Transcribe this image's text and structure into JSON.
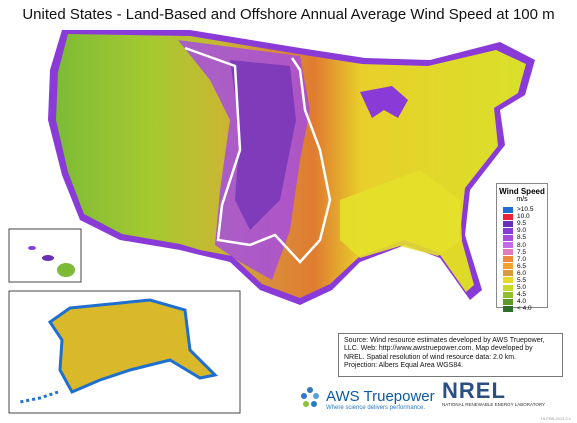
{
  "title": "United States - Land-Based and Offshore Annual Average Wind Speed at 100 m",
  "legend": {
    "title": "Wind Speed",
    "unit": "m/s",
    "items": [
      {
        "label": ">10.5",
        "color": "#1f6fd1"
      },
      {
        "label": "10.0",
        "color": "#e8233a"
      },
      {
        "label": "9.5",
        "color": "#6b2fb5"
      },
      {
        "label": "9.0",
        "color": "#8a3ad6"
      },
      {
        "label": "8.5",
        "color": "#a64de0"
      },
      {
        "label": "8.0",
        "color": "#c46bea"
      },
      {
        "label": "7.5",
        "color": "#e07ab8"
      },
      {
        "label": "7.0",
        "color": "#ef8a3a"
      },
      {
        "label": "6.5",
        "color": "#f2a12e"
      },
      {
        "label": "6.0",
        "color": "#d99a3b"
      },
      {
        "label": "5.5",
        "color": "#e6d92a"
      },
      {
        "label": "5.0",
        "color": "#c8d92a"
      },
      {
        "label": "4.5",
        "color": "#8fbf2a"
      },
      {
        "label": "4.0",
        "color": "#5e9a2c"
      },
      {
        "label": "< 4.0",
        "color": "#2f6f2a"
      }
    ]
  },
  "source_text": {
    "line1": "Source: Wind resource estimates developed by AWS Truepower,",
    "line2": "LLC.  Web: http://www.awstruepower.com. Map developed by",
    "line3": "NREL.  Spatial resolution of wind resource data: 2.0 km.",
    "line4": "Projection: Albers Equal Area WGS84."
  },
  "aws": {
    "brand": "AWS Truepower",
    "tagline": "Where science delivers performance."
  },
  "nrel": {
    "name": "NREL",
    "subtitle": "NATIONAL RENEWABLE ENERGY LABORATORY"
  },
  "footer_code": "19-FEB-2013 2.1"
}
